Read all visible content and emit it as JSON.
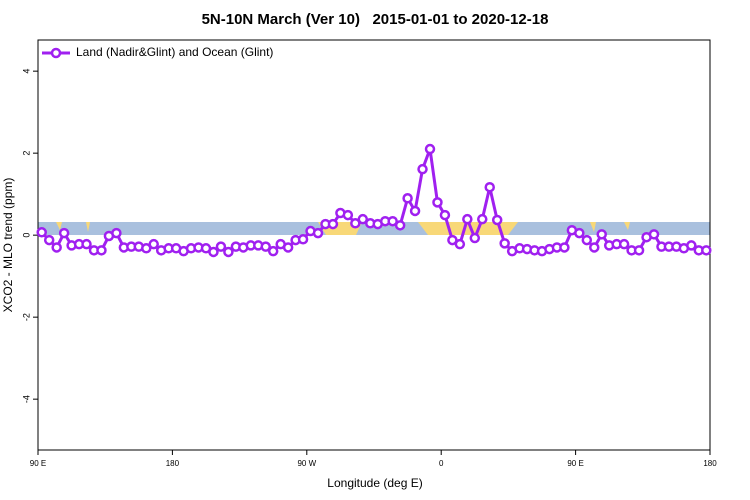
{
  "chart_data": {
    "type": "line",
    "title": "5N-10N March (Ver 10)   2015-01-01 to 2020-12-18",
    "xlabel": "Longitude (deg E)",
    "ylabel": "XCO2 - MLO trend (ppm)",
    "xlim": [
      90,
      540
    ],
    "xticks": [
      {
        "value": 90,
        "label": "90 E"
      },
      {
        "value": 180,
        "label": "180"
      },
      {
        "value": 270,
        "label": "90 W"
      },
      {
        "value": 360,
        "label": "0"
      },
      {
        "value": 450,
        "label": "90 E"
      },
      {
        "value": 540,
        "label": "180"
      }
    ],
    "ylim": [
      -5.24,
      4.76
    ],
    "yticks": [
      -4,
      -2,
      0,
      2,
      4
    ],
    "legend": "topleft",
    "x": [
      92.5,
      97.5,
      102.5,
      107.5,
      112.5,
      117.5,
      122.5,
      127.5,
      132.5,
      137.5,
      142.5,
      147.5,
      152.5,
      157.5,
      162.5,
      167.5,
      172.5,
      177.5,
      182.5,
      187.5,
      192.5,
      197.5,
      202.5,
      207.5,
      212.5,
      217.5,
      222.5,
      227.5,
      232.5,
      237.5,
      242.5,
      247.5,
      252.5,
      257.5,
      262.5,
      267.5,
      272.5,
      277.5,
      282.5,
      287.5,
      292.5,
      297.5,
      302.5,
      307.5,
      312.5,
      317.5,
      322.5,
      327.5,
      332.5,
      337.5,
      342.5,
      347.5,
      352.5,
      357.5,
      362.5,
      367.5,
      372.5,
      377.5,
      382.5,
      387.5,
      392.5,
      397.5,
      402.5,
      407.5,
      412.5,
      417.5,
      422.5,
      427.5,
      432.5,
      437.5,
      442.5,
      447.5,
      452.5,
      457.5,
      462.5,
      467.5,
      472.5,
      477.5,
      482.5,
      487.5,
      492.5,
      497.5,
      502.5,
      507.5,
      512.5,
      517.5,
      522.5,
      527.5,
      532.5,
      537.5
    ],
    "series": [
      {
        "name": "Land (Nadir&Glint) and Ocean (Glint)",
        "color": "#a020f0",
        "values": [
          0.07,
          -0.12,
          -0.3,
          0.05,
          -0.25,
          -0.22,
          -0.22,
          -0.37,
          -0.37,
          -0.02,
          0.05,
          -0.3,
          -0.28,
          -0.28,
          -0.32,
          -0.22,
          -0.37,
          -0.32,
          -0.32,
          -0.39,
          -0.32,
          -0.3,
          -0.32,
          -0.41,
          -0.28,
          -0.41,
          -0.28,
          -0.3,
          -0.25,
          -0.25,
          -0.28,
          -0.39,
          -0.22,
          -0.3,
          -0.12,
          -0.1,
          0.1,
          0.05,
          0.27,
          0.27,
          0.54,
          0.49,
          0.29,
          0.39,
          0.29,
          0.27,
          0.34,
          0.34,
          0.24,
          0.9,
          0.59,
          1.61,
          2.1,
          0.8,
          0.49,
          -0.12,
          -0.22,
          0.39,
          -0.07,
          0.39,
          1.17,
          0.37,
          -0.2,
          -0.39,
          -0.32,
          -0.34,
          -0.37,
          -0.39,
          -0.34,
          -0.3,
          -0.3,
          0.12,
          0.05,
          -0.12,
          -0.3,
          0.02,
          -0.25,
          -0.22,
          -0.22,
          -0.37,
          -0.37,
          -0.05,
          0.02,
          -0.28,
          -0.28,
          -0.28,
          -0.32,
          -0.25,
          -0.37,
          -0.37
        ]
      }
    ]
  }
}
